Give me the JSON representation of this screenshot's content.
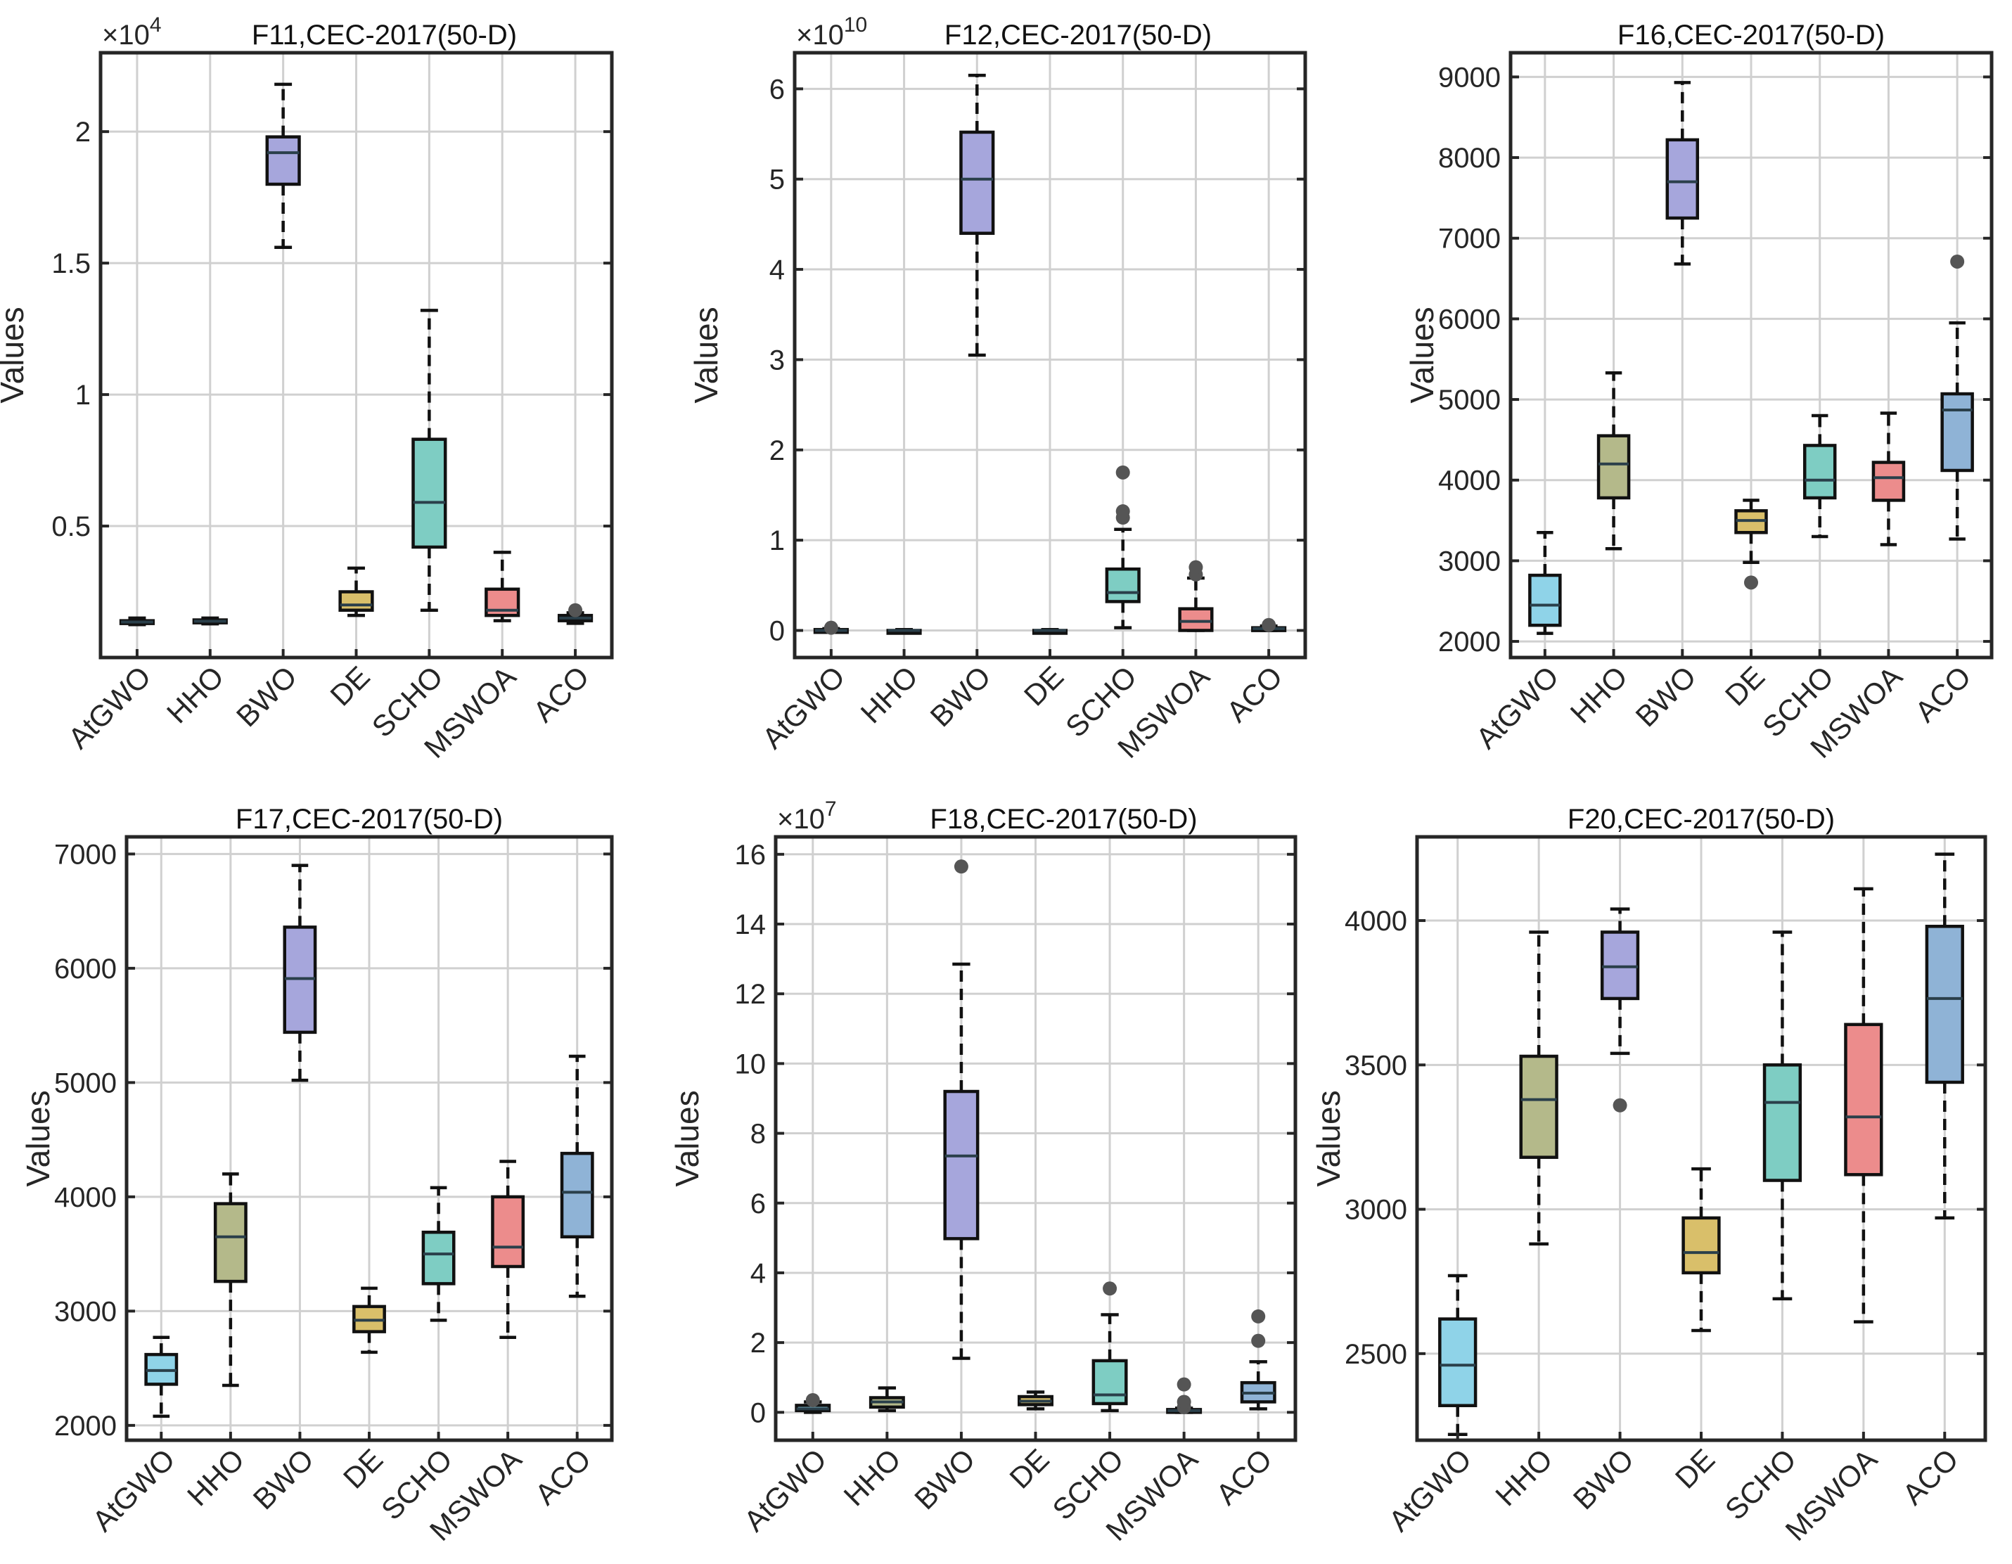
{
  "figure": {
    "colors": {
      "AtGWO": "#8fd3e8",
      "HHO": "#b4b98a",
      "BWO": "#a6a6dc",
      "DE": "#d9bf6a",
      "SCHO": "#7ecdc3",
      "MSWOA": "#ec8c8c",
      "ACO": "#8fb3d6",
      "outlier": "#555555",
      "grid": "#d0d0d0",
      "axis": "#262626"
    }
  },
  "chart_data": [
    {
      "type": "box",
      "title": "F11,CEC-2017(50-D)",
      "ylabel": "Values",
      "xlabel": "",
      "exponent_label": "×10",
      "exponent": "4",
      "ylim": [
        0,
        2.3
      ],
      "yticks": [
        0.5,
        1,
        1.5,
        2
      ],
      "ytick_labels": [
        "0.5",
        "1",
        "1.5",
        "2"
      ],
      "categories": [
        "AtGWO",
        "HHO",
        "BWO",
        "DE",
        "SCHO",
        "MSWOA",
        "ACO"
      ],
      "boxes": [
        {
          "min": 0.125,
          "q1": 0.13,
          "median": 0.135,
          "q3": 0.14,
          "max": 0.15,
          "outliers": []
        },
        {
          "min": 0.128,
          "q1": 0.132,
          "median": 0.138,
          "q3": 0.143,
          "max": 0.15,
          "outliers": []
        },
        {
          "min": 1.56,
          "q1": 1.8,
          "median": 1.92,
          "q3": 1.98,
          "max": 2.18,
          "outliers": []
        },
        {
          "min": 0.16,
          "q1": 0.18,
          "median": 0.2,
          "q3": 0.25,
          "max": 0.34,
          "outliers": []
        },
        {
          "min": 0.18,
          "q1": 0.42,
          "median": 0.59,
          "q3": 0.83,
          "max": 1.32,
          "outliers": []
        },
        {
          "min": 0.14,
          "q1": 0.16,
          "median": 0.18,
          "q3": 0.26,
          "max": 0.4,
          "outliers": []
        },
        {
          "min": 0.13,
          "q1": 0.14,
          "median": 0.15,
          "q3": 0.16,
          "max": 0.17,
          "outliers": [
            0.18
          ]
        }
      ]
    },
    {
      "type": "box",
      "title": "F12,CEC-2017(50-D)",
      "ylabel": "Values",
      "xlabel": "",
      "exponent_label": "×10",
      "exponent": "10",
      "ylim": [
        -0.3,
        6.4
      ],
      "yticks": [
        0,
        1,
        2,
        3,
        4,
        5,
        6
      ],
      "ytick_labels": [
        "0",
        "1",
        "2",
        "3",
        "4",
        "5",
        "6"
      ],
      "categories": [
        "AtGWO",
        "HHO",
        "BWO",
        "DE",
        "SCHO",
        "MSWOA",
        "ACO"
      ],
      "boxes": [
        {
          "min": 0.0,
          "q1": 0.0,
          "median": 0.0,
          "q3": 0.01,
          "max": 0.02,
          "outliers": [
            0.03
          ]
        },
        {
          "min": 0.0,
          "q1": 0.0,
          "median": 0.0,
          "q3": 0.0,
          "max": 0.01,
          "outliers": []
        },
        {
          "min": 3.05,
          "q1": 4.4,
          "median": 5.0,
          "q3": 5.52,
          "max": 6.15,
          "outliers": []
        },
        {
          "min": 0.0,
          "q1": 0.0,
          "median": 0.0,
          "q3": 0.0,
          "max": 0.01,
          "outliers": []
        },
        {
          "min": 0.03,
          "q1": 0.32,
          "median": 0.42,
          "q3": 0.68,
          "max": 1.12,
          "outliers": [
            1.25,
            1.32,
            1.75
          ]
        },
        {
          "min": 0.0,
          "q1": 0.0,
          "median": 0.1,
          "q3": 0.24,
          "max": 0.58,
          "outliers": [
            0.62,
            0.7
          ]
        },
        {
          "min": 0.0,
          "q1": 0.01,
          "median": 0.02,
          "q3": 0.03,
          "max": 0.05,
          "outliers": [
            0.06
          ]
        }
      ]
    },
    {
      "type": "box",
      "title": "F16,CEC-2017(50-D)",
      "ylabel": "Values",
      "xlabel": "",
      "exponent_label": "",
      "exponent": "",
      "ylim": [
        1800,
        9300
      ],
      "yticks": [
        2000,
        3000,
        4000,
        5000,
        6000,
        7000,
        8000,
        9000
      ],
      "ytick_labels": [
        "2000",
        "3000",
        "4000",
        "5000",
        "6000",
        "7000",
        "8000",
        "9000"
      ],
      "categories": [
        "AtGWO",
        "HHO",
        "BWO",
        "DE",
        "SCHO",
        "MSWOA",
        "ACO"
      ],
      "boxes": [
        {
          "min": 2100,
          "q1": 2200,
          "median": 2450,
          "q3": 2820,
          "max": 3350,
          "outliers": []
        },
        {
          "min": 3150,
          "q1": 3780,
          "median": 4200,
          "q3": 4550,
          "max": 5330,
          "outliers": []
        },
        {
          "min": 6680,
          "q1": 7250,
          "median": 7700,
          "q3": 8220,
          "max": 8930,
          "outliers": []
        },
        {
          "min": 2980,
          "q1": 3350,
          "median": 3500,
          "q3": 3620,
          "max": 3750,
          "outliers": [
            2730
          ]
        },
        {
          "min": 3300,
          "q1": 3780,
          "median": 4000,
          "q3": 4430,
          "max": 4800,
          "outliers": []
        },
        {
          "min": 3200,
          "q1": 3750,
          "median": 4030,
          "q3": 4220,
          "max": 4830,
          "outliers": []
        },
        {
          "min": 3270,
          "q1": 4120,
          "median": 4870,
          "q3": 5070,
          "max": 5950,
          "outliers": [
            6710
          ]
        }
      ]
    },
    {
      "type": "box",
      "title": "F17,CEC-2017(50-D)",
      "ylabel": "Values",
      "xlabel": "",
      "exponent_label": "",
      "exponent": "",
      "ylim": [
        1870,
        7150
      ],
      "yticks": [
        2000,
        3000,
        4000,
        5000,
        6000,
        7000
      ],
      "ytick_labels": [
        "2000",
        "3000",
        "4000",
        "5000",
        "6000",
        "7000"
      ],
      "categories": [
        "AtGWO",
        "HHO",
        "BWO",
        "DE",
        "SCHO",
        "MSWOA",
        "ACO"
      ],
      "boxes": [
        {
          "min": 2080,
          "q1": 2360,
          "median": 2480,
          "q3": 2620,
          "max": 2770,
          "outliers": []
        },
        {
          "min": 2350,
          "q1": 3260,
          "median": 3650,
          "q3": 3940,
          "max": 4200,
          "outliers": []
        },
        {
          "min": 5020,
          "q1": 5440,
          "median": 5910,
          "q3": 6360,
          "max": 6900,
          "outliers": []
        },
        {
          "min": 2640,
          "q1": 2820,
          "median": 2920,
          "q3": 3040,
          "max": 3200,
          "outliers": []
        },
        {
          "min": 2920,
          "q1": 3240,
          "median": 3500,
          "q3": 3690,
          "max": 4080,
          "outliers": []
        },
        {
          "min": 2770,
          "q1": 3390,
          "median": 3560,
          "q3": 4000,
          "max": 4310,
          "outliers": []
        },
        {
          "min": 3130,
          "q1": 3650,
          "median": 4040,
          "q3": 4380,
          "max": 5230,
          "outliers": []
        }
      ]
    },
    {
      "type": "box",
      "title": "F18,CEC-2017(50-D)",
      "ylabel": "Values",
      "xlabel": "",
      "exponent_label": "×10",
      "exponent": "7",
      "ylim": [
        -0.8,
        16.5
      ],
      "yticks": [
        0,
        2,
        4,
        6,
        8,
        10,
        12,
        14,
        16
      ],
      "ytick_labels": [
        "0",
        "2",
        "4",
        "6",
        "8",
        "10",
        "12",
        "14",
        "16"
      ],
      "categories": [
        "AtGWO",
        "HHO",
        "BWO",
        "DE",
        "SCHO",
        "MSWOA",
        "ACO"
      ],
      "boxes": [
        {
          "min": 0.0,
          "q1": 0.05,
          "median": 0.1,
          "q3": 0.2,
          "max": 0.3,
          "outliers": [
            0.35
          ]
        },
        {
          "min": 0.05,
          "q1": 0.15,
          "median": 0.3,
          "q3": 0.42,
          "max": 0.7,
          "outliers": []
        },
        {
          "min": 1.55,
          "q1": 4.98,
          "median": 7.35,
          "q3": 9.2,
          "max": 12.85,
          "outliers": [
            15.65
          ]
        },
        {
          "min": 0.1,
          "q1": 0.22,
          "median": 0.32,
          "q3": 0.45,
          "max": 0.58,
          "outliers": []
        },
        {
          "min": 0.05,
          "q1": 0.25,
          "median": 0.5,
          "q3": 1.48,
          "max": 2.8,
          "outliers": [
            3.55
          ]
        },
        {
          "min": 0.0,
          "q1": 0.02,
          "median": 0.05,
          "q3": 0.08,
          "max": 0.12,
          "outliers": [
            0.15,
            0.3,
            0.8
          ]
        },
        {
          "min": 0.1,
          "q1": 0.3,
          "median": 0.55,
          "q3": 0.85,
          "max": 1.45,
          "outliers": [
            2.05,
            2.75
          ]
        }
      ]
    },
    {
      "type": "box",
      "title": "F20,CEC-2017(50-D)",
      "ylabel": "Values",
      "xlabel": "",
      "exponent_label": "",
      "exponent": "",
      "ylim": [
        2200,
        4290
      ],
      "yticks": [
        2500,
        3000,
        3500,
        4000
      ],
      "ytick_labels": [
        "2500",
        "3000",
        "3500",
        "4000"
      ],
      "categories": [
        "AtGWO",
        "HHO",
        "BWO",
        "DE",
        "SCHO",
        "MSWOA",
        "ACO"
      ],
      "boxes": [
        {
          "min": 2220,
          "q1": 2320,
          "median": 2460,
          "q3": 2620,
          "max": 2770,
          "outliers": []
        },
        {
          "min": 2880,
          "q1": 3180,
          "median": 3380,
          "q3": 3530,
          "max": 3960,
          "outliers": []
        },
        {
          "min": 3540,
          "q1": 3730,
          "median": 3840,
          "q3": 3960,
          "max": 4040,
          "outliers": [
            3360
          ]
        },
        {
          "min": 2580,
          "q1": 2780,
          "median": 2850,
          "q3": 2970,
          "max": 3140,
          "outliers": []
        },
        {
          "min": 2690,
          "q1": 3100,
          "median": 3370,
          "q3": 3500,
          "max": 3960,
          "outliers": []
        },
        {
          "min": 2610,
          "q1": 3120,
          "median": 3320,
          "q3": 3640,
          "max": 4110,
          "outliers": []
        },
        {
          "min": 2970,
          "q1": 3440,
          "median": 3730,
          "q3": 3980,
          "max": 4230,
          "outliers": []
        }
      ]
    }
  ]
}
